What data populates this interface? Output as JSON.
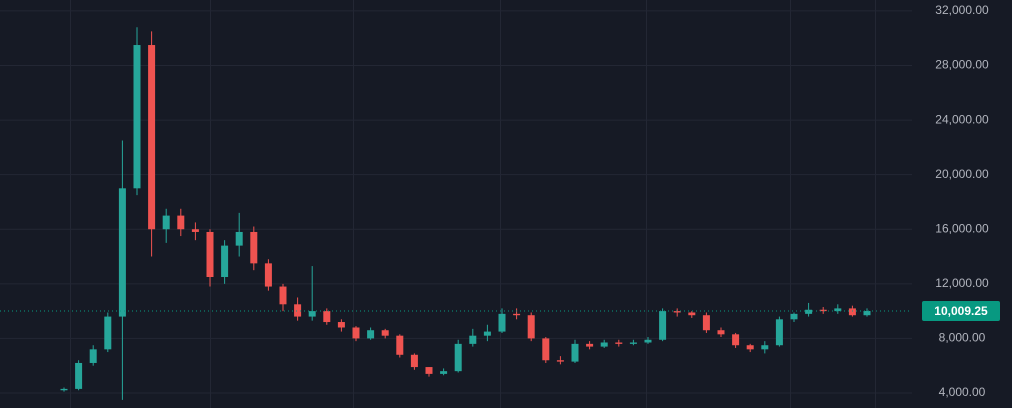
{
  "chart_data": {
    "type": "candlestick",
    "ylim": [
      2900,
      32800
    ],
    "yticks": [
      {
        "value": 4000,
        "label": "4,000.00"
      },
      {
        "value": 8000,
        "label": "8,000.00"
      },
      {
        "value": 12000,
        "label": "12,000.00"
      },
      {
        "value": 16000,
        "label": "16,000.00"
      },
      {
        "value": 20000,
        "label": "20,000.00"
      },
      {
        "value": 24000,
        "label": "24,000.00"
      },
      {
        "value": 28000,
        "label": "28,000.00"
      },
      {
        "value": 32000,
        "label": "32,000.00"
      }
    ],
    "grid": true,
    "up_color": "#26a69a",
    "down_color": "#ef5350",
    "last_price": {
      "value": 10009.25,
      "label": "10,009.25"
    },
    "last_price_color": "#089981",
    "open": [
      4200,
      4300,
      6200,
      7200,
      9600,
      19000,
      29500,
      16000,
      17000,
      16000,
      15800,
      12500,
      14800,
      15800,
      13500,
      11800,
      10500,
      9600,
      10000,
      9200,
      8800,
      8000,
      8600,
      8200,
      6800,
      5900,
      5400,
      5600,
      7600,
      8200,
      8500,
      9800,
      9700,
      8000,
      6400,
      6300,
      7600,
      7400,
      7700,
      7600,
      7700,
      7900,
      10000,
      9900,
      9700,
      8600,
      8300,
      7500,
      7200,
      7500,
      9400,
      9800,
      10100,
      10000,
      10200,
      9700
    ],
    "high": [
      4400,
      6400,
      7500,
      9900,
      22500,
      30800,
      30500,
      17500,
      17500,
      16500,
      16000,
      15200,
      17200,
      16200,
      13800,
      12000,
      11000,
      13300,
      10200,
      9400,
      8900,
      8800,
      8700,
      8300,
      6900,
      5900,
      5800,
      7900,
      8700,
      9000,
      10200,
      10200,
      9900,
      8100,
      6700,
      7900,
      7800,
      7900,
      7900,
      7900,
      8100,
      10200,
      10200,
      10000,
      9900,
      8800,
      8400,
      7600,
      7800,
      9600,
      9900,
      10600,
      10300,
      10500,
      10400,
      10200
    ],
    "low": [
      4100,
      4200,
      6000,
      7000,
      3500,
      18500,
      14000,
      15000,
      15500,
      15200,
      11800,
      12000,
      14000,
      13000,
      11500,
      10000,
      9300,
      9300,
      9000,
      8500,
      7800,
      7900,
      8000,
      6600,
      5700,
      5200,
      5300,
      5500,
      7400,
      7800,
      8400,
      9400,
      7800,
      6200,
      6100,
      6200,
      7200,
      7300,
      7400,
      7500,
      7600,
      7800,
      9600,
      9500,
      8400,
      8100,
      7300,
      7000,
      6900,
      7400,
      9200,
      9600,
      9800,
      9800,
      9600,
      9600
    ],
    "close": [
      4300,
      6200,
      7200,
      9600,
      19000,
      29500,
      16000,
      17000,
      16000,
      15800,
      12500,
      14800,
      15800,
      13500,
      11800,
      10500,
      9600,
      10000,
      9200,
      8800,
      8000,
      8600,
      8200,
      6800,
      5900,
      5400,
      5600,
      7600,
      8200,
      8500,
      9800,
      9700,
      8000,
      6400,
      6300,
      7600,
      7400,
      7700,
      7600,
      7700,
      7900,
      10000,
      9900,
      9700,
      8600,
      8300,
      7500,
      7200,
      7500,
      9400,
      9800,
      10100,
      10000,
      10200,
      9700,
      10009.25
    ]
  }
}
